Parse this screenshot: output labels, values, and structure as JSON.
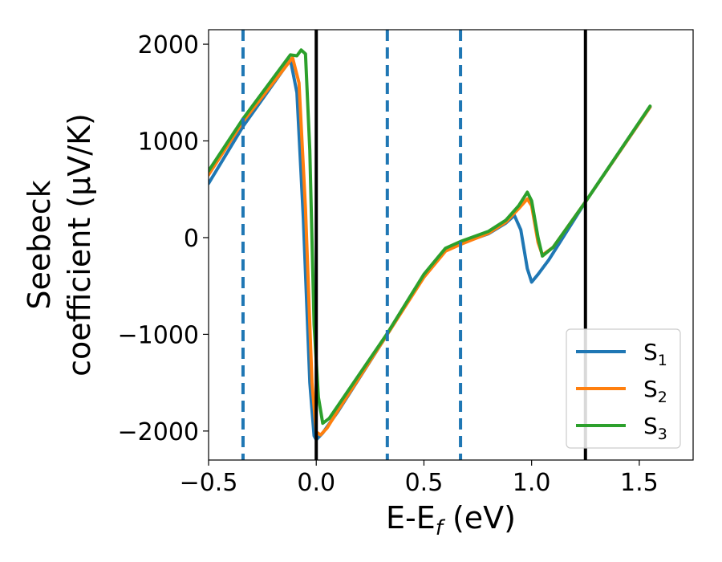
{
  "chart_data": {
    "type": "line",
    "xlabel": "E-E",
    "xlabel_sub": "f",
    "xlabel_unit": " (eV)",
    "ylabel_line1": "Seebeck",
    "ylabel_line2": "coefficient  (μV/K)",
    "xlim": [
      -0.5,
      1.75
    ],
    "ylim": [
      -2300,
      2150
    ],
    "x_ticks": [
      -0.5,
      0.0,
      0.5,
      1.0,
      1.5
    ],
    "x_tick_labels": [
      "−0.5",
      "0.0",
      "0.5",
      "1.0",
      "1.5"
    ],
    "y_ticks": [
      -2000,
      -1000,
      0,
      1000,
      2000
    ],
    "y_tick_labels": [
      "−2000",
      "−1000",
      "0",
      "1000",
      "2000"
    ],
    "grid": false,
    "legend_position": "lower-right",
    "vlines_solid": [
      0.0,
      1.25
    ],
    "vlines_dashed": [
      -0.34,
      0.33,
      0.67
    ],
    "solid_vline_color": "#000000",
    "dashed_vline_color": "#1f77b4",
    "series": [
      {
        "name": "S",
        "sub": "1",
        "color": "#1f77b4",
        "points": [
          [
            -0.5,
            560
          ],
          [
            -0.34,
            1150
          ],
          [
            -0.12,
            1840
          ],
          [
            -0.09,
            1500
          ],
          [
            -0.06,
            200
          ],
          [
            -0.03,
            -1500
          ],
          [
            -0.01,
            -2050
          ],
          [
            0.0,
            -2090
          ],
          [
            0.03,
            -2020
          ],
          [
            0.1,
            -1800
          ],
          [
            0.33,
            -1000
          ],
          [
            0.5,
            -400
          ],
          [
            0.6,
            -130
          ],
          [
            0.67,
            -60
          ],
          [
            0.8,
            40
          ],
          [
            0.88,
            150
          ],
          [
            0.92,
            230
          ],
          [
            0.95,
            80
          ],
          [
            0.98,
            -320
          ],
          [
            1.0,
            -460
          ],
          [
            1.03,
            -380
          ],
          [
            1.08,
            -230
          ],
          [
            1.25,
            370
          ],
          [
            1.55,
            1350
          ]
        ]
      },
      {
        "name": "S",
        "sub": "2",
        "color": "#ff7f0e",
        "points": [
          [
            -0.5,
            650
          ],
          [
            -0.34,
            1200
          ],
          [
            -0.11,
            1860
          ],
          [
            -0.08,
            1600
          ],
          [
            -0.05,
            300
          ],
          [
            -0.02,
            -1500
          ],
          [
            0.0,
            -2010
          ],
          [
            0.02,
            -2040
          ],
          [
            0.05,
            -1970
          ],
          [
            0.1,
            -1790
          ],
          [
            0.33,
            -1000
          ],
          [
            0.5,
            -410
          ],
          [
            0.6,
            -140
          ],
          [
            0.67,
            -70
          ],
          [
            0.8,
            45
          ],
          [
            0.88,
            160
          ],
          [
            0.94,
            300
          ],
          [
            0.98,
            400
          ],
          [
            1.0,
            330
          ],
          [
            1.03,
            -50
          ],
          [
            1.05,
            -180
          ],
          [
            1.1,
            -100
          ],
          [
            1.25,
            370
          ],
          [
            1.55,
            1350
          ]
        ]
      },
      {
        "name": "S",
        "sub": "3",
        "color": "#2ca02c",
        "points": [
          [
            -0.5,
            690
          ],
          [
            -0.34,
            1230
          ],
          [
            -0.12,
            1890
          ],
          [
            -0.09,
            1880
          ],
          [
            -0.07,
            1940
          ],
          [
            -0.05,
            1900
          ],
          [
            -0.03,
            900
          ],
          [
            -0.01,
            -900
          ],
          [
            0.01,
            -1650
          ],
          [
            0.03,
            -1920
          ],
          [
            0.06,
            -1870
          ],
          [
            0.1,
            -1740
          ],
          [
            0.33,
            -990
          ],
          [
            0.5,
            -380
          ],
          [
            0.6,
            -110
          ],
          [
            0.67,
            -40
          ],
          [
            0.8,
            65
          ],
          [
            0.88,
            180
          ],
          [
            0.94,
            330
          ],
          [
            0.98,
            470
          ],
          [
            1.0,
            380
          ],
          [
            1.03,
            0
          ],
          [
            1.05,
            -190
          ],
          [
            1.1,
            -100
          ],
          [
            1.25,
            370
          ],
          [
            1.55,
            1360
          ]
        ]
      }
    ]
  }
}
